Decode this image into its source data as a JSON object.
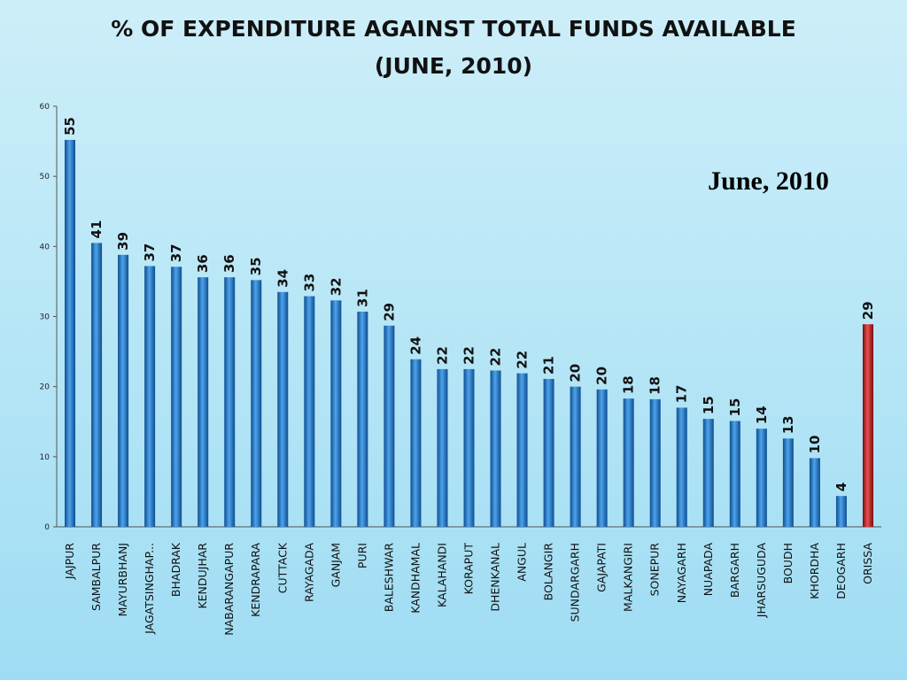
{
  "slide": {
    "title_line1": "% OF EXPENDITURE AGAINST TOTAL FUNDS AVAILABLE",
    "title_line2": "(JUNE, 2010)",
    "annotation": "June, 2010"
  },
  "colors": {
    "bar": "#1a6fc0",
    "bar_dark": "#0d4d93",
    "bar_light": "#4fa3e8",
    "highlight": "#c01515",
    "highlight_dark": "#7a0b0b",
    "highlight_light": "#e85050"
  },
  "chart_data": {
    "type": "bar",
    "title": "% OF EXPENDITURE AGAINST TOTAL FUNDS AVAILABLE",
    "subtitle": "(JUNE, 2010)",
    "xlabel": "",
    "ylabel": "",
    "ylim": [
      0,
      60
    ],
    "yticks": [
      0,
      10,
      20,
      30,
      40,
      50,
      60
    ],
    "grid": false,
    "legend": "none",
    "categories": [
      "JAJPUR",
      "SAMBALPUR",
      "MAYURBHANJ",
      "JAGATSINGHAP...",
      "BHADRAK",
      "KENDUJHAR",
      "NABARANGAPUR",
      "KENDRAPARA",
      "CUTTACK",
      "RAYAGADA",
      "GANJAM",
      "PURI",
      "BALESHWAR",
      "KANDHAMAL",
      "KALAHANDI",
      "KORAPUT",
      "DHENKANAL",
      "ANGUL",
      "BOLANGIR",
      "SUNDARGARH",
      "GAJAPATI",
      "MALKANGIRI",
      "SONEPUR",
      "NAYAGARH",
      "NUAPADA",
      "BARGARH",
      "JHARSUGUDA",
      "BOUDH",
      "KHORDHA",
      "DEOGARH",
      "ORISSA"
    ],
    "values": [
      55.2,
      40.5,
      38.8,
      37.2,
      37.1,
      35.6,
      35.6,
      35.2,
      33.5,
      32.9,
      32.3,
      30.7,
      28.7,
      23.9,
      22.5,
      22.5,
      22.3,
      21.9,
      21.1,
      20.0,
      19.6,
      18.3,
      18.2,
      17.0,
      15.4,
      15.1,
      14.0,
      12.6,
      9.8,
      4.4,
      28.9
    ],
    "data_labels": [
      "55",
      "41",
      "39",
      "37",
      "37",
      "36",
      "36",
      "35",
      "34",
      "33",
      "32",
      "31",
      "29",
      "24",
      "22",
      "22",
      "22",
      "22",
      "21",
      "20",
      "20",
      "18",
      "18",
      "17",
      "15",
      "15",
      "14",
      "13",
      "10",
      "4",
      "29"
    ],
    "highlight_category": "ORISSA"
  }
}
